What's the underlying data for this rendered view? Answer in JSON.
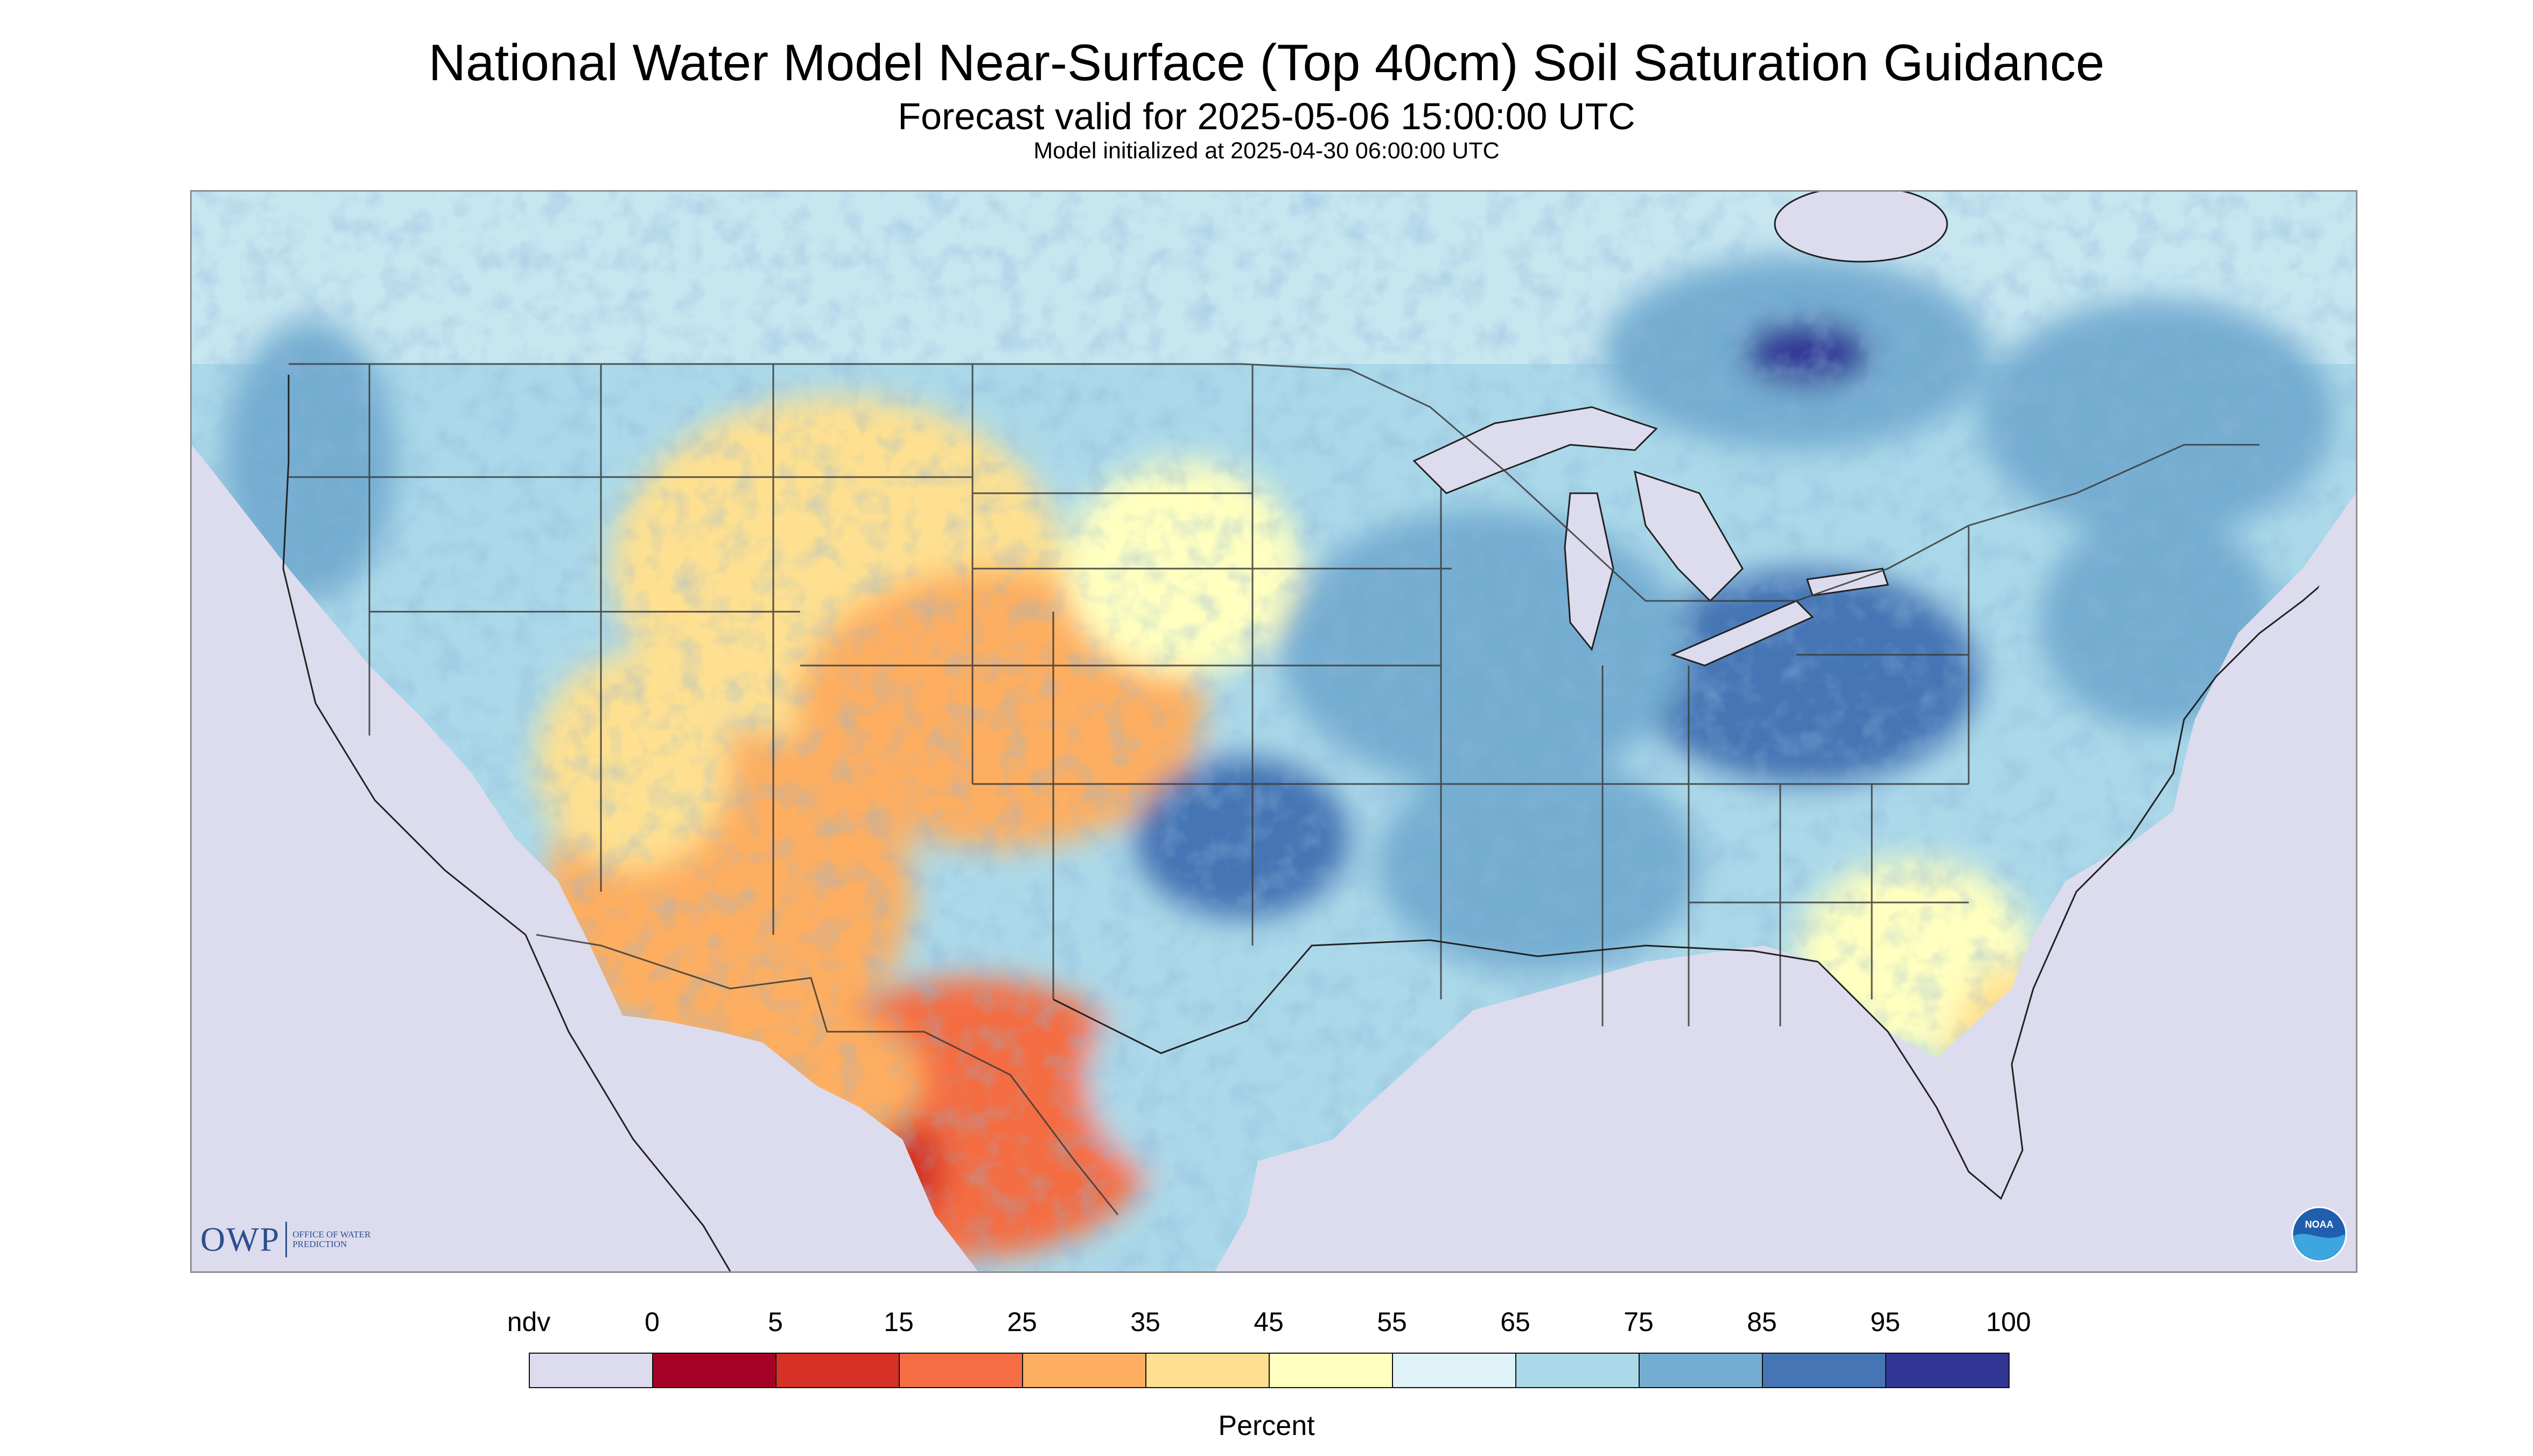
{
  "header": {
    "title": "National Water Model Near-Surface (Top 40cm) Soil Saturation Guidance",
    "subtitle": "Forecast valid for 2025-05-06 15:00:00 UTC",
    "init_line": "Model initialized at 2025-04-30 06:00:00 UTC"
  },
  "map": {
    "region": "CONUS",
    "variable": "Near-surface soil saturation",
    "background_color": "#dcdcee",
    "water_color": "#dcdcee",
    "border_color": "#3a3a3a"
  },
  "logos": {
    "owp_text": "OWP",
    "owp_subtext": "OFFICE OF WATER PREDICTION",
    "noaa_text": "NOAA",
    "owp_icon": "owp-logo",
    "noaa_icon": "noaa-logo"
  },
  "legend": {
    "unit_label": "Percent",
    "bins": [
      {
        "label": "ndv",
        "color": "#dcdcee"
      },
      {
        "label": "0",
        "color": "#a50026"
      },
      {
        "label": "5",
        "color": "#d73027"
      },
      {
        "label": "15",
        "color": "#f46d43"
      },
      {
        "label": "25",
        "color": "#fdae61"
      },
      {
        "label": "35",
        "color": "#fee090"
      },
      {
        "label": "45",
        "color": "#ffffbf"
      },
      {
        "label": "55",
        "color": "#e0f3f8"
      },
      {
        "label": "65",
        "color": "#abd9e9"
      },
      {
        "label": "75",
        "color": "#74add1"
      },
      {
        "label": "85",
        "color": "#4575b4"
      },
      {
        "label": "95",
        "color": "#313695"
      }
    ],
    "end_label": "100"
  }
}
